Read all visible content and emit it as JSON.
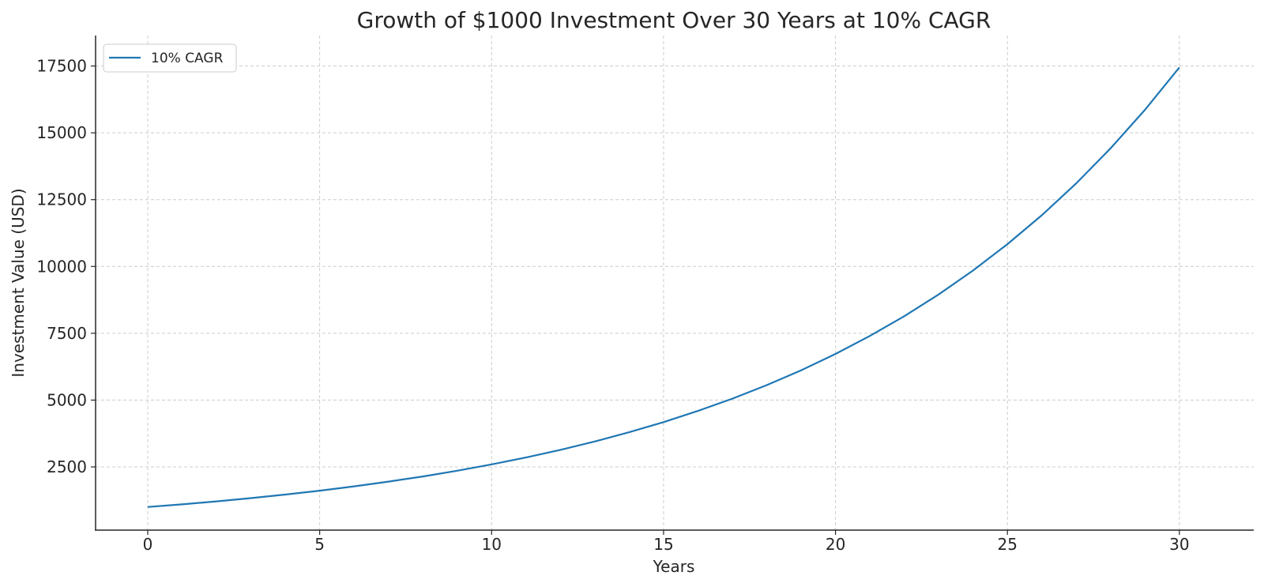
{
  "chart_data": {
    "type": "line",
    "title": "Growth of $1000 Investment Over 30 Years at 10% CAGR",
    "xlabel": "Years",
    "ylabel": "Investment Value (USD)",
    "xlim": [
      -1.5,
      31.5
    ],
    "ylim": [
      300,
      18300
    ],
    "xticks": [
      0,
      5,
      10,
      15,
      20,
      25,
      30
    ],
    "yticks": [
      2500,
      5000,
      7500,
      10000,
      12500,
      15000,
      17500
    ],
    "grid": true,
    "legend_position": "upper left",
    "x": [
      0,
      1,
      2,
      3,
      4,
      5,
      6,
      7,
      8,
      9,
      10,
      11,
      12,
      13,
      14,
      15,
      16,
      17,
      18,
      19,
      20,
      21,
      22,
      23,
      24,
      25,
      26,
      27,
      28,
      29,
      30
    ],
    "series": [
      {
        "name": "10% CAGR",
        "color": "#1f77b4",
        "values": [
          1000,
          1100,
          1210,
          1331,
          1464.1,
          1610.51,
          1771.56,
          1948.72,
          2143.59,
          2357.95,
          2593.74,
          2853.12,
          3138.43,
          3452.27,
          3797.5,
          4177.25,
          4594.97,
          5054.47,
          5559.92,
          6115.91,
          6727.5,
          7400.25,
          8140.27,
          8954.3,
          9849.73,
          10834.71,
          11918.18,
          13109.99,
          14420.99,
          15863.09,
          17449.4
        ]
      }
    ]
  }
}
